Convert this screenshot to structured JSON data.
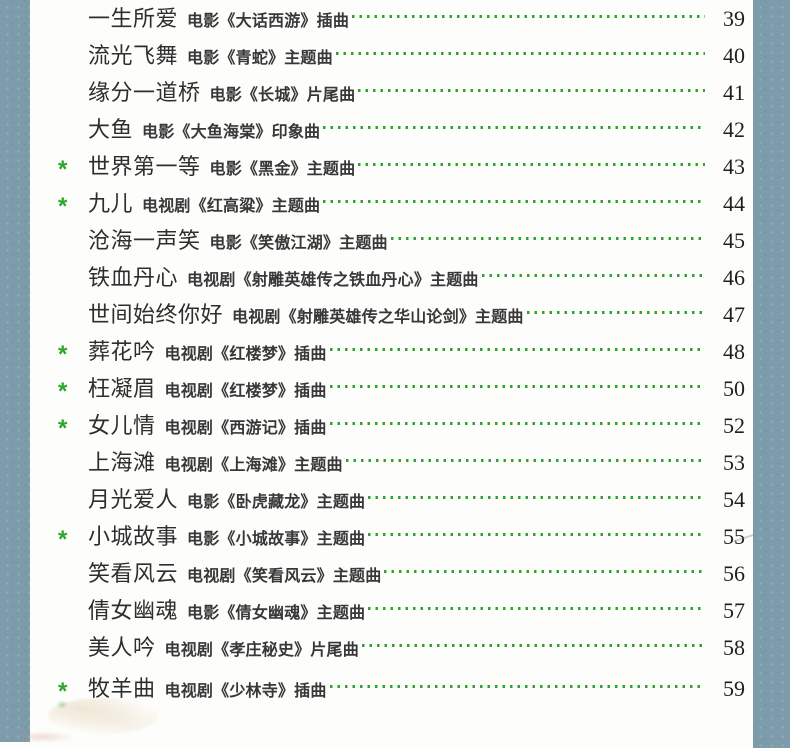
{
  "page": {
    "background": "#fdfdfb",
    "binding_color": "#7d9cab",
    "accent_green": "#2ca62c",
    "text_color": "#2e2e2e",
    "star_symbol": "*"
  },
  "toc": {
    "entries": [
      {
        "starred": false,
        "title": "一生所爱",
        "source": "电影《大话西游》插曲",
        "page_no": "39"
      },
      {
        "starred": false,
        "title": "流光飞舞",
        "source": "电影《青蛇》主题曲",
        "page_no": "40"
      },
      {
        "starred": false,
        "title": "缘分一道桥",
        "source": "电影《长城》片尾曲",
        "page_no": "41"
      },
      {
        "starred": false,
        "title": "大鱼",
        "source": "电影《大鱼海棠》印象曲",
        "page_no": "42"
      },
      {
        "starred": true,
        "title": "世界第一等",
        "source": "电影《黑金》主题曲",
        "page_no": "43"
      },
      {
        "starred": true,
        "title": "九儿",
        "source": "电视剧《红高粱》主题曲",
        "page_no": "44"
      },
      {
        "starred": false,
        "title": "沧海一声笑",
        "source": "电影《笑傲江湖》主题曲",
        "page_no": "45"
      },
      {
        "starred": false,
        "title": "铁血丹心",
        "source": "电视剧《射雕英雄传之铁血丹心》主题曲",
        "page_no": "46"
      },
      {
        "starred": false,
        "title": "世间始终你好",
        "source": "电视剧《射雕英雄传之华山论剑》主题曲",
        "page_no": "47"
      },
      {
        "starred": true,
        "title": "葬花吟",
        "source": "电视剧《红楼梦》插曲",
        "page_no": "48"
      },
      {
        "starred": true,
        "title": "枉凝眉",
        "source": "电视剧《红楼梦》插曲",
        "page_no": "50"
      },
      {
        "starred": true,
        "title": "女儿情",
        "source": "电视剧《西游记》插曲",
        "page_no": "52"
      },
      {
        "starred": false,
        "title": "上海滩",
        "source": "电视剧《上海滩》主题曲",
        "page_no": "53"
      },
      {
        "starred": false,
        "title": "月光爱人",
        "source": "电影《卧虎藏龙》主题曲",
        "page_no": "54"
      },
      {
        "starred": true,
        "title": "小城故事",
        "source": "电影《小城故事》主题曲",
        "page_no": "55"
      },
      {
        "starred": false,
        "title": "笑看风云",
        "source": "电视剧《笑看风云》主题曲",
        "page_no": "56"
      },
      {
        "starred": false,
        "title": "倩女幽魂",
        "source": "电影《倩女幽魂》主题曲",
        "page_no": "57"
      },
      {
        "starred": false,
        "title": "美人吟",
        "source": "电视剧《孝庄秘史》片尾曲",
        "page_no": "58"
      },
      {
        "starred": true,
        "title": "牧羊曲",
        "source": "电视剧《少林寺》插曲",
        "page_no": "59"
      }
    ]
  }
}
